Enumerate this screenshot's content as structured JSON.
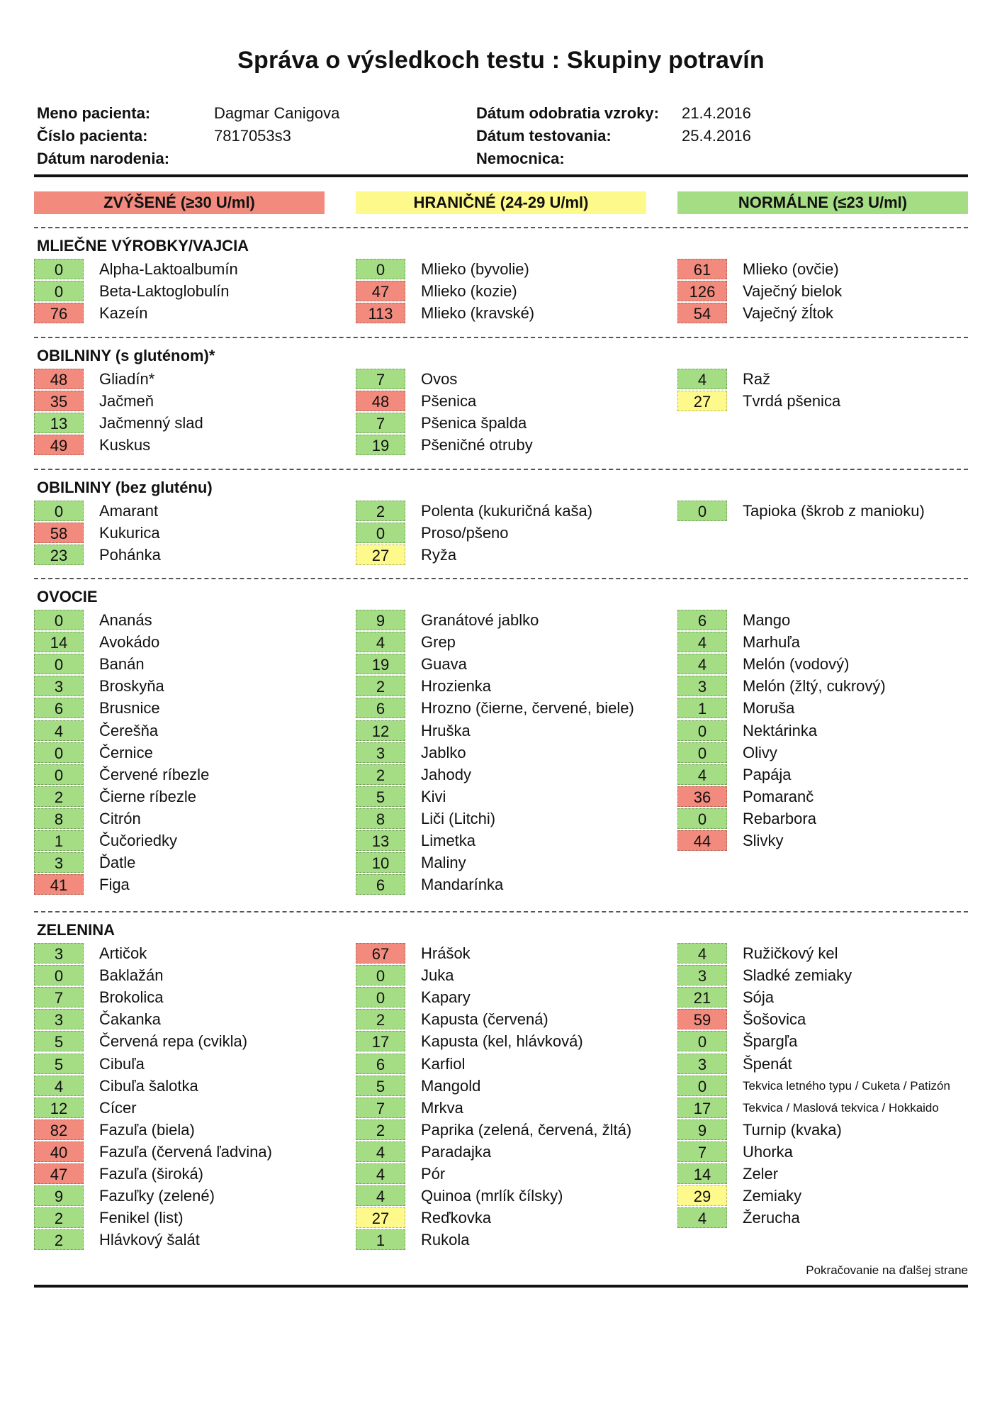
{
  "title": "Správa o výsledkoch testu : Skupiny potravín",
  "patient": {
    "name_label": "Meno pacienta:",
    "name": "Dagmar Canigova",
    "number_label": "Číslo pacienta:",
    "number": "7817053s3",
    "birth_label": "Dátum narodenia:",
    "birth": "",
    "sample_label": "Dátum odobratia vzroky:",
    "sample_date": "21.4.2016",
    "test_label": "Dátum testovania:",
    "test_date": "25.4.2016",
    "hospital_label": "Nemocnica:",
    "hospital": ""
  },
  "legend": {
    "high": "ZVÝŠENÉ (≥30 U/ml)",
    "border": "HRANIČNÉ (24-29 U/ml)",
    "normal": "NORMÁLNE (≤23 U/ml)"
  },
  "colors": {
    "high": "#f28b7d",
    "border": "#fdf98a",
    "normal": "#a5dd85"
  },
  "sections": [
    {
      "title": "MLIEČNE VÝROBKY/VAJCIA",
      "columns": [
        [
          {
            "v": "0",
            "n": "Alpha-Laktoalbumín"
          },
          {
            "v": "0",
            "n": "Beta-Laktoglobulín"
          },
          {
            "v": "76",
            "n": "Kazeín"
          }
        ],
        [
          {
            "v": "0",
            "n": "Mlieko (byvolie)"
          },
          {
            "v": "47",
            "n": "Mlieko (kozie)"
          },
          {
            "v": "113",
            "n": "Mlieko (kravské)"
          }
        ],
        [
          {
            "v": "61",
            "n": "Mlieko (ovčie)"
          },
          {
            "v": "126",
            "n": "Vaječný bielok"
          },
          {
            "v": "54",
            "n": "Vaječný žĺtok"
          }
        ]
      ]
    },
    {
      "title": "OBILNINY (s gluténom)*",
      "columns": [
        [
          {
            "v": "48",
            "n": "Gliadín*"
          },
          {
            "v": "35",
            "n": "Jačmeň"
          },
          {
            "v": "13",
            "n": "Jačmenný slad"
          },
          {
            "v": "49",
            "n": "Kuskus"
          }
        ],
        [
          {
            "v": "7",
            "n": "Ovos"
          },
          {
            "v": "48",
            "n": "Pšenica"
          },
          {
            "v": "7",
            "n": "Pšenica špalda"
          },
          {
            "v": "19",
            "n": "Pšeničné otruby"
          }
        ],
        [
          {
            "v": "4",
            "n": "Raž"
          },
          {
            "v": "27",
            "n": "Tvrdá pšenica"
          }
        ]
      ]
    },
    {
      "title": "OBILNINY (bez gluténu)",
      "columns": [
        [
          {
            "v": "0",
            "n": "Amarant"
          },
          {
            "v": "58",
            "n": "Kukurica"
          },
          {
            "v": "23",
            "n": "Pohánka"
          }
        ],
        [
          {
            "v": "2",
            "n": "Polenta (kukuričná kaša)"
          },
          {
            "v": "0",
            "n": "Proso/pšeno"
          },
          {
            "v": "27",
            "n": "Ryža"
          }
        ],
        [
          {
            "v": "0",
            "n": "Tapioka (škrob z manioku)"
          }
        ]
      ]
    },
    {
      "title": "OVOCIE",
      "columns": [
        [
          {
            "v": "0",
            "n": "Ananás"
          },
          {
            "v": "14",
            "n": "Avokádo"
          },
          {
            "v": "0",
            "n": "Banán"
          },
          {
            "v": "3",
            "n": "Broskyňa"
          },
          {
            "v": "6",
            "n": "Brusnice"
          },
          {
            "v": "4",
            "n": "Čerešňa"
          },
          {
            "v": "0",
            "n": "Černice"
          },
          {
            "v": "0",
            "n": "Červené ríbezle"
          },
          {
            "v": "2",
            "n": "Čierne ríbezle"
          },
          {
            "v": "8",
            "n": "Citrón"
          },
          {
            "v": "1",
            "n": "Čučoriedky"
          },
          {
            "v": "3",
            "n": "Ďatle"
          },
          {
            "v": "41",
            "n": "Figa"
          }
        ],
        [
          {
            "v": "9",
            "n": "Granátové jablko"
          },
          {
            "v": "4",
            "n": "Grep"
          },
          {
            "v": "19",
            "n": "Guava"
          },
          {
            "v": "2",
            "n": "Hrozienka"
          },
          {
            "v": "6",
            "n": "Hrozno (čierne, červené, biele)"
          },
          {
            "v": "12",
            "n": "Hruška"
          },
          {
            "v": "3",
            "n": "Jablko"
          },
          {
            "v": "2",
            "n": "Jahody"
          },
          {
            "v": "5",
            "n": "Kivi"
          },
          {
            "v": "8",
            "n": "Liči (Litchi)"
          },
          {
            "v": "13",
            "n": "Limetka"
          },
          {
            "v": "10",
            "n": "Maliny"
          },
          {
            "v": "6",
            "n": "Mandarínka"
          }
        ],
        [
          {
            "v": "6",
            "n": "Mango"
          },
          {
            "v": "4",
            "n": "Marhuľa"
          },
          {
            "v": "4",
            "n": "Melón (vodový)"
          },
          {
            "v": "3",
            "n": "Melón (žltý, cukrový)"
          },
          {
            "v": "1",
            "n": "Moruša"
          },
          {
            "v": "0",
            "n": "Nektárinka"
          },
          {
            "v": "0",
            "n": "Olivy"
          },
          {
            "v": "4",
            "n": "Papája"
          },
          {
            "v": "36",
            "n": "Pomaranč"
          },
          {
            "v": "0",
            "n": "Rebarbora"
          },
          {
            "v": "44",
            "n": "Slivky"
          }
        ]
      ]
    },
    {
      "title": "ZELENINA",
      "columns": [
        [
          {
            "v": "3",
            "n": "Artičok"
          },
          {
            "v": "0",
            "n": "Baklažán"
          },
          {
            "v": "7",
            "n": "Brokolica"
          },
          {
            "v": "3",
            "n": "Čakanka"
          },
          {
            "v": "5",
            "n": "Červená repa (cvikla)"
          },
          {
            "v": "5",
            "n": "Cibuľa"
          },
          {
            "v": "4",
            "n": "Cibuľa šalotka"
          },
          {
            "v": "12",
            "n": "Cícer"
          },
          {
            "v": "82",
            "n": "Fazuľa (biela)"
          },
          {
            "v": "40",
            "n": "Fazuľa (červená ľadvina)"
          },
          {
            "v": "47",
            "n": "Fazuľa (široká)"
          },
          {
            "v": "9",
            "n": "Fazuľky (zelené)"
          },
          {
            "v": "2",
            "n": "Fenikel (list)"
          },
          {
            "v": "2",
            "n": "Hlávkový šalát"
          }
        ],
        [
          {
            "v": "67",
            "n": "Hrášok"
          },
          {
            "v": "0",
            "n": "Juka"
          },
          {
            "v": "0",
            "n": "Kapary"
          },
          {
            "v": "2",
            "n": "Kapusta (červená)"
          },
          {
            "v": "17",
            "n": "Kapusta (kel, hlávková)"
          },
          {
            "v": "6",
            "n": "Karfiol"
          },
          {
            "v": "5",
            "n": "Mangold"
          },
          {
            "v": "7",
            "n": "Mrkva"
          },
          {
            "v": "2",
            "n": "Paprika (zelená, červená, žltá)"
          },
          {
            "v": "4",
            "n": "Paradajka"
          },
          {
            "v": "4",
            "n": "Pór"
          },
          {
            "v": "4",
            "n": "Quinoa (mrlík čílsky)"
          },
          {
            "v": "27",
            "n": "Reďkovka"
          },
          {
            "v": "1",
            "n": "Rukola"
          }
        ],
        [
          {
            "v": "4",
            "n": "Ružičkový kel"
          },
          {
            "v": "3",
            "n": "Sladké zemiaky"
          },
          {
            "v": "21",
            "n": "Sója"
          },
          {
            "v": "59",
            "n": "Šošovica"
          },
          {
            "v": "0",
            "n": "Špargľa"
          },
          {
            "v": "3",
            "n": "Špenát"
          },
          {
            "v": "0",
            "n": "Tekvica letného typu / Cuketa / Patizón",
            "small": true
          },
          {
            "v": "17",
            "n": "Tekvica / Maslová tekvica / Hokkaido",
            "small": true
          },
          {
            "v": "9",
            "n": "Turnip (kvaka)"
          },
          {
            "v": "7",
            "n": "Uhorka"
          },
          {
            "v": "14",
            "n": "Zeler"
          },
          {
            "v": "29",
            "n": "Zemiaky"
          },
          {
            "v": "4",
            "n": "Žerucha"
          }
        ]
      ]
    }
  ],
  "footer": "Pokračovanie na ďalšej strane"
}
